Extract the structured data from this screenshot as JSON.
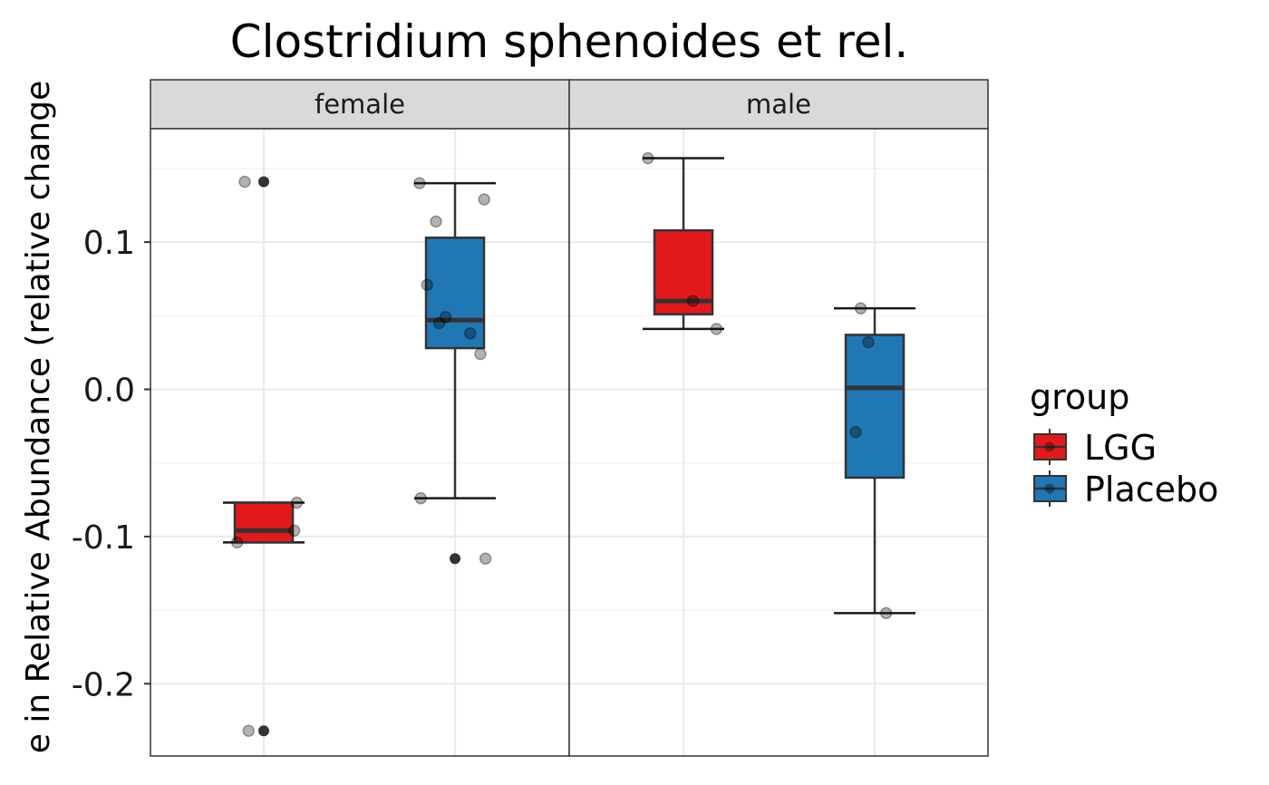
{
  "chart_data": {
    "type": "box",
    "title": "Clostridium sphenoides et rel.",
    "xlabel": "",
    "ylabel": "e in Relative Abundance (relative change",
    "ylim": [
      -0.25,
      0.175
    ],
    "y_ticks": [
      0.1,
      0.0,
      -0.1,
      -0.2
    ],
    "y_tick_labels": [
      "0.1",
      "0.0",
      "-0.1",
      "-0.2"
    ],
    "grid": true,
    "legend": {
      "title": "group",
      "position": "right",
      "entries": [
        {
          "name": "LGG",
          "color": "#e31a1c"
        },
        {
          "name": "Placebo",
          "color": "#1f78b4"
        }
      ]
    },
    "panels": [
      {
        "label": "female",
        "boxes": [
          {
            "group": "LGG",
            "q1": -0.104,
            "median": -0.096,
            "q3": -0.077,
            "whisker_low": -0.104,
            "whisker_high": -0.077,
            "outliers": [
              0.141,
              -0.232
            ],
            "points": [
              {
                "jitter": -0.3,
                "y": 0.141
              },
              {
                "jitter": -0.24,
                "y": -0.232
              },
              {
                "jitter": -0.42,
                "y": -0.104
              },
              {
                "jitter": 0.52,
                "y": -0.077
              },
              {
                "jitter": 0.48,
                "y": -0.096
              }
            ]
          },
          {
            "group": "Placebo",
            "q1": 0.028,
            "median": 0.047,
            "q3": 0.103,
            "whisker_low": -0.074,
            "whisker_high": 0.14,
            "outliers": [
              -0.115
            ],
            "points": [
              {
                "jitter": -0.56,
                "y": 0.14
              },
              {
                "jitter": -0.3,
                "y": 0.114
              },
              {
                "jitter": -0.44,
                "y": 0.071
              },
              {
                "jitter": -0.15,
                "y": 0.049
              },
              {
                "jitter": -0.25,
                "y": 0.045
              },
              {
                "jitter": 0.24,
                "y": 0.038
              },
              {
                "jitter": 0.4,
                "y": 0.024
              },
              {
                "jitter": 0.46,
                "y": 0.129
              },
              {
                "jitter": -0.54,
                "y": -0.074
              },
              {
                "jitter": 0.48,
                "y": -0.115
              }
            ]
          }
        ]
      },
      {
        "label": "male",
        "boxes": [
          {
            "group": "LGG",
            "q1": 0.051,
            "median": 0.06,
            "q3": 0.108,
            "whisker_low": 0.041,
            "whisker_high": 0.157,
            "outliers": [],
            "points": [
              {
                "jitter": -0.56,
                "y": 0.157
              },
              {
                "jitter": 0.15,
                "y": 0.06
              },
              {
                "jitter": 0.52,
                "y": 0.041
              }
            ]
          },
          {
            "group": "Placebo",
            "q1": -0.06,
            "median": 0.001,
            "q3": 0.037,
            "whisker_low": -0.152,
            "whisker_high": 0.055,
            "outliers": [],
            "points": [
              {
                "jitter": -0.22,
                "y": 0.055
              },
              {
                "jitter": -0.1,
                "y": 0.032
              },
              {
                "jitter": -0.3,
                "y": -0.029
              },
              {
                "jitter": 0.18,
                "y": -0.152
              }
            ]
          }
        ]
      }
    ]
  }
}
